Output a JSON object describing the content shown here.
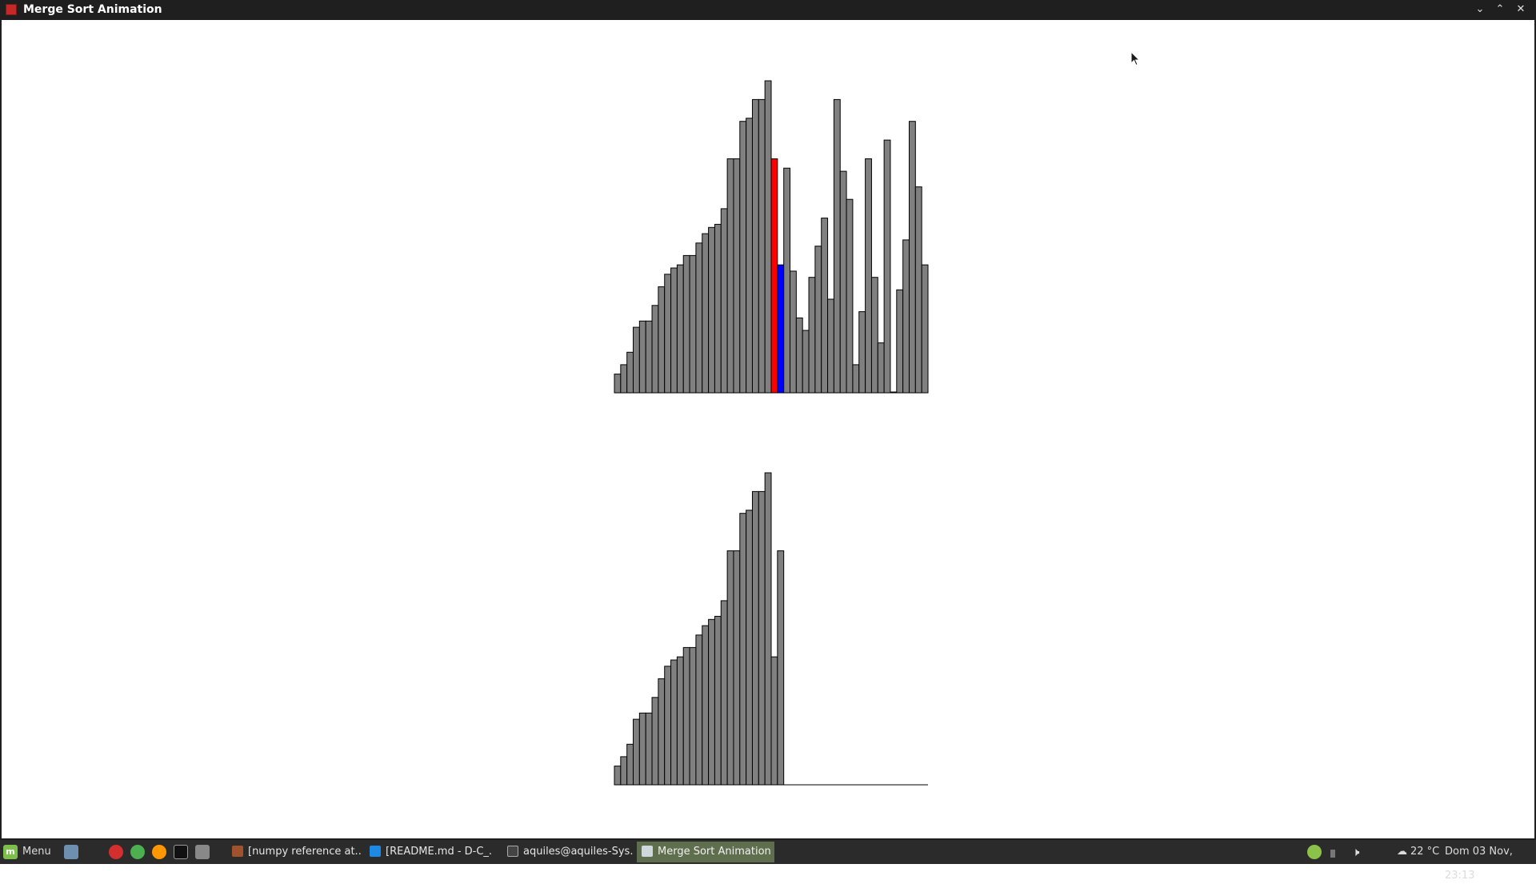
{
  "window": {
    "title": "Merge Sort Animation",
    "controls": [
      "minimize",
      "maximize",
      "close"
    ]
  },
  "visualization": {
    "algorithm": "merge sort",
    "bar_color": "#808080",
    "compare_left_color": "#ff0000",
    "compare_right_color": "#0000ff",
    "main_array": [
      6,
      9,
      13,
      21,
      23,
      23,
      28,
      34,
      38,
      40,
      41,
      44,
      44,
      48,
      51,
      53,
      54,
      59,
      75,
      75,
      87,
      88,
      94,
      94,
      100,
      75,
      41,
      72,
      39,
      24,
      20,
      37,
      47,
      56,
      30,
      94,
      71,
      62,
      9,
      26,
      75,
      37,
      16,
      81,
      0,
      33,
      49,
      87,
      66,
      41
    ],
    "highlight_left_index": 25,
    "highlight_right_index": 26,
    "aux_array": [
      6,
      9,
      13,
      21,
      23,
      23,
      28,
      34,
      38,
      40,
      41,
      44,
      44,
      48,
      51,
      53,
      54,
      59,
      75,
      75,
      87,
      88,
      94,
      94,
      100,
      41,
      75
    ],
    "aux_capacity": 50
  },
  "taskbar": {
    "menu_label": "Menu",
    "tasks": [
      {
        "label": "[numpy reference at...",
        "active": false,
        "icon": "document-viewer-icon"
      },
      {
        "label": "[README.md - D-C_...",
        "active": false,
        "icon": "vscode-icon"
      },
      {
        "label": "aquiles@aquiles-Sys...",
        "active": false,
        "icon": "terminal-icon"
      },
      {
        "label": "Merge Sort Animation",
        "active": true,
        "icon": "window-icon"
      }
    ],
    "temperature": "22 °C",
    "datetime": "Dom 03 Nov, 23:13"
  }
}
